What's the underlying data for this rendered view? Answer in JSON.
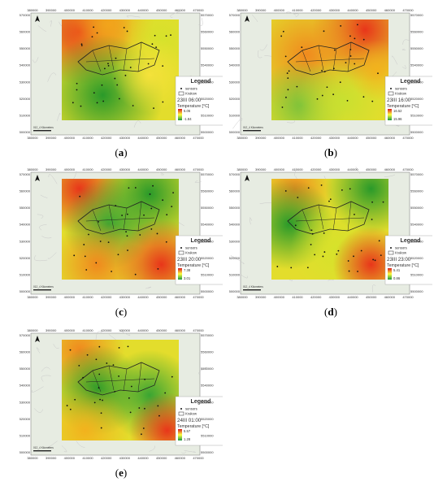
{
  "figure": {
    "panels": [
      {
        "letter": "a",
        "caption_open": "(",
        "caption_close": ")",
        "timestamp": "23III 06:00",
        "legend_title": "Legend",
        "sensors_label": "sensors",
        "area_label": "Krakow",
        "temp_label": "Temperature [°C]",
        "temp_max": "5.06",
        "temp_min": "-1.84",
        "x_ticks": [
          "380000",
          "390000",
          "400000",
          "410000",
          "420000",
          "430000",
          "440000",
          "450000",
          "460000",
          "470000"
        ],
        "y_ticks": [
          "5570000",
          "5560000",
          "5550000",
          "5540000",
          "5530000",
          "5520000",
          "5510000",
          "5500000"
        ],
        "scale_text": "012_4 Kilometers",
        "hotspots": [
          {
            "cx": 0.15,
            "cy": 0.12,
            "r": 0.35,
            "c": "#e8361a"
          },
          {
            "cx": 0.4,
            "cy": 0.05,
            "r": 0.3,
            "c": "#f2a41b"
          },
          {
            "cx": 0.85,
            "cy": 0.2,
            "r": 0.25,
            "c": "#d6e22b"
          },
          {
            "cx": 0.35,
            "cy": 0.75,
            "r": 0.4,
            "c": "#2a9a2a"
          },
          {
            "cx": 0.75,
            "cy": 0.55,
            "r": 0.25,
            "c": "#f5e23a"
          }
        ]
      },
      {
        "letter": "b",
        "caption_open": "(",
        "caption_close": ")",
        "timestamp": "23III 16:00",
        "legend_title": "Legend",
        "sensors_label": "sensors",
        "area_label": "Krakow",
        "temp_label": "Temperature [°C]",
        "temp_max": "16.52",
        "temp_min": "15.96",
        "x_ticks": [
          "380000",
          "390000",
          "400000",
          "410000",
          "420000",
          "430000",
          "440000",
          "450000",
          "460000",
          "470000"
        ],
        "y_ticks": [
          "5570000",
          "5560000",
          "5550000",
          "5540000",
          "5530000",
          "5520000",
          "5510000",
          "5500000"
        ],
        "scale_text": "012_4 Kilometers",
        "hotspots": [
          {
            "cx": 0.8,
            "cy": 0.1,
            "r": 0.35,
            "c": "#e8361a"
          },
          {
            "cx": 0.3,
            "cy": 0.35,
            "r": 0.4,
            "c": "#f08a1e"
          },
          {
            "cx": 0.25,
            "cy": 0.85,
            "r": 0.3,
            "c": "#7cc23a"
          },
          {
            "cx": 0.6,
            "cy": 0.8,
            "r": 0.3,
            "c": "#c8e030"
          },
          {
            "cx": 0.9,
            "cy": 0.5,
            "r": 0.2,
            "c": "#f2b21d"
          }
        ]
      },
      {
        "letter": "c",
        "caption_open": "(",
        "caption_close": ")",
        "timestamp": "23III 20:00",
        "legend_title": "Legend",
        "sensors_label": "sensors",
        "area_label": "Krakow",
        "temp_label": "Temperature [°C]",
        "temp_max": "7.38",
        "temp_min": "3.01",
        "x_ticks": [
          "380000",
          "390000",
          "400000",
          "410000",
          "420000",
          "430000",
          "440000",
          "450000",
          "460000",
          "470000"
        ],
        "y_ticks": [
          "5570000",
          "5560000",
          "5550000",
          "5540000",
          "5530000",
          "5520000",
          "5510000",
          "5500000"
        ],
        "scale_text": "012_4 Kilometers",
        "hotspots": [
          {
            "cx": 0.15,
            "cy": 0.1,
            "r": 0.3,
            "c": "#e8361a"
          },
          {
            "cx": 0.75,
            "cy": 0.15,
            "r": 0.35,
            "c": "#2a9a2a"
          },
          {
            "cx": 0.4,
            "cy": 0.45,
            "r": 0.3,
            "c": "#3aa532"
          },
          {
            "cx": 0.3,
            "cy": 0.85,
            "r": 0.3,
            "c": "#f08a1e"
          },
          {
            "cx": 0.85,
            "cy": 0.85,
            "r": 0.3,
            "c": "#e8361a"
          }
        ]
      },
      {
        "letter": "d",
        "caption_open": "(",
        "caption_close": ")",
        "timestamp": "23III 23:00",
        "legend_title": "Legend",
        "sensors_label": "sensors",
        "area_label": "Krakow",
        "temp_label": "Temperature [°C]",
        "temp_max": "5.41",
        "temp_min": "0.86",
        "x_ticks": [
          "380000",
          "390000",
          "400000",
          "410000",
          "420000",
          "430000",
          "440000",
          "450000",
          "460000",
          "470000"
        ],
        "y_ticks": [
          "5570000",
          "5560000",
          "5550000",
          "5540000",
          "5530000",
          "5520000",
          "5510000",
          "5500000"
        ],
        "scale_text": "012_4 Kilometers",
        "hotspots": [
          {
            "cx": 0.2,
            "cy": 0.1,
            "r": 0.25,
            "c": "#f08a1e"
          },
          {
            "cx": 0.15,
            "cy": 0.45,
            "r": 0.3,
            "c": "#2a9a2a"
          },
          {
            "cx": 0.85,
            "cy": 0.1,
            "r": 0.3,
            "c": "#2a9a2a"
          },
          {
            "cx": 0.55,
            "cy": 0.7,
            "r": 0.3,
            "c": "#d6e22b"
          },
          {
            "cx": 0.85,
            "cy": 0.85,
            "r": 0.25,
            "c": "#e8361a"
          }
        ]
      },
      {
        "letter": "e",
        "caption_open": "(",
        "caption_close": ")",
        "timestamp": "24III 01:00",
        "legend_title": "Legend",
        "sensors_label": "sensors",
        "area_label": "Krakow",
        "temp_label": "Temperature [°C]",
        "temp_max": "5.57",
        "temp_min": "1.28",
        "x_ticks": [
          "380000",
          "390000",
          "400000",
          "410000",
          "420000",
          "430000",
          "440000",
          "450000",
          "460000",
          "470000"
        ],
        "y_ticks": [
          "5570000",
          "5560000",
          "5550000",
          "5540000",
          "5530000",
          "5520000",
          "5510000",
          "5500000"
        ],
        "scale_text": "012_4 Kilometers",
        "hotspots": [
          {
            "cx": 0.15,
            "cy": 0.1,
            "r": 0.3,
            "c": "#f08a1e"
          },
          {
            "cx": 0.3,
            "cy": 0.5,
            "r": 0.3,
            "c": "#2a9a2a"
          },
          {
            "cx": 0.75,
            "cy": 0.55,
            "r": 0.3,
            "c": "#3aa532"
          },
          {
            "cx": 0.2,
            "cy": 0.9,
            "r": 0.3,
            "c": "#f2b21d"
          },
          {
            "cx": 0.9,
            "cy": 0.9,
            "r": 0.25,
            "c": "#e8361a"
          }
        ]
      }
    ],
    "colors": {
      "ramp_hot": "#d7191c",
      "ramp_mid": "#ffff40",
      "ramp_cool": "#1a9641",
      "basemap": "#e7ece2"
    }
  }
}
